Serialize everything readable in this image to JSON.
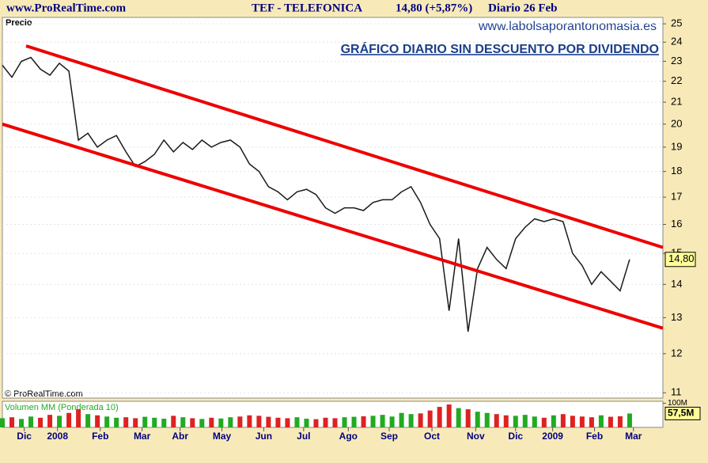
{
  "header": {
    "site": "www.ProRealTime.com",
    "ticker": "TEF - TELEFONICA",
    "change": "14,80 (+5,87%)",
    "period": "Diario  26 Feb"
  },
  "chart_data": [
    {
      "type": "line",
      "title": "Precio",
      "annotations": [
        "www.labolsaporantonomasia.es",
        "GRÁFICO DIARIO SIN DESCUENTO POR DIVIDENDO",
        "© ProRealTime.com"
      ],
      "x": [
        0,
        1,
        2,
        3,
        4,
        5,
        6,
        7,
        8,
        9,
        10,
        11,
        12,
        13,
        14,
        15,
        16,
        17,
        18,
        19,
        20,
        21,
        22,
        23,
        24,
        25,
        26,
        27,
        28,
        29,
        30,
        31,
        32,
        33,
        34,
        35,
        36,
        37,
        38,
        39,
        40,
        41,
        42,
        43,
        44,
        45,
        46,
        47,
        48,
        49,
        50,
        51,
        52,
        53,
        54,
        55,
        56,
        57,
        58,
        59,
        60,
        61,
        62,
        63,
        64,
        65,
        66
      ],
      "values": [
        22.8,
        22.2,
        23.0,
        23.2,
        22.6,
        22.3,
        22.9,
        22.5,
        19.3,
        19.6,
        19.0,
        19.3,
        19.5,
        18.8,
        18.2,
        18.4,
        18.7,
        19.3,
        18.8,
        19.2,
        18.9,
        19.3,
        19.0,
        19.2,
        19.3,
        19.0,
        18.3,
        18.0,
        17.4,
        17.2,
        16.9,
        17.2,
        17.3,
        17.1,
        16.6,
        16.4,
        16.6,
        16.6,
        16.5,
        16.8,
        16.9,
        16.9,
        17.2,
        17.4,
        16.8,
        16.0,
        15.5,
        13.2,
        15.5,
        12.6,
        14.5,
        15.2,
        14.8,
        14.5,
        15.5,
        15.9,
        16.2,
        16.1,
        16.2,
        16.1,
        15.0,
        14.6,
        14.0,
        14.4,
        14.1,
        13.8,
        14.8
      ],
      "color": "#1a1a1a",
      "trendlines": [
        {
          "x": [
            2.5,
            69.5
          ],
          "values": [
            23.8,
            15.2
          ]
        },
        {
          "x": [
            0,
            69.5
          ],
          "values": [
            20.0,
            12.7
          ]
        }
      ],
      "trend_color": "#ee0000",
      "price_marker": {
        "value": 14.8,
        "label": "14,80"
      },
      "log": true,
      "grid": true,
      "xlim": [
        0,
        69.5
      ],
      "ylim": [
        10.87,
        25.36
      ],
      "yticks": [
        11,
        12,
        13,
        14,
        15,
        16,
        17,
        18,
        19,
        20,
        21,
        22,
        23,
        24,
        25
      ],
      "xticks": [
        {
          "value": 2.3,
          "label": "Dic"
        },
        {
          "value": 5.8,
          "label": "2008"
        },
        {
          "value": 10.3,
          "label": "Feb"
        },
        {
          "value": 14.7,
          "label": "Mar"
        },
        {
          "value": 18.7,
          "label": "Abr"
        },
        {
          "value": 23.1,
          "label": "May"
        },
        {
          "value": 27.5,
          "label": "Jun"
        },
        {
          "value": 31.7,
          "label": "Jul"
        },
        {
          "value": 36.4,
          "label": "Ago"
        },
        {
          "value": 40.7,
          "label": "Sep"
        },
        {
          "value": 45.2,
          "label": "Oct"
        },
        {
          "value": 49.8,
          "label": "Nov"
        },
        {
          "value": 54.0,
          "label": "Dic"
        },
        {
          "value": 57.9,
          "label": "2009"
        },
        {
          "value": 62.3,
          "label": "Feb"
        },
        {
          "value": 66.4,
          "label": "Mar"
        }
      ]
    },
    {
      "type": "bar",
      "title": "Volumen MM (Ponderada 10)",
      "x": [
        0,
        1,
        2,
        3,
        4,
        5,
        6,
        7,
        8,
        9,
        10,
        11,
        12,
        13,
        14,
        15,
        16,
        17,
        18,
        19,
        20,
        21,
        22,
        23,
        24,
        25,
        26,
        27,
        28,
        29,
        30,
        31,
        32,
        33,
        34,
        35,
        36,
        37,
        38,
        39,
        40,
        41,
        42,
        43,
        44,
        45,
        46,
        47,
        48,
        49,
        50,
        51,
        52,
        53,
        54,
        55,
        56,
        57,
        58,
        59,
        60,
        61,
        62,
        63,
        64,
        65,
        66
      ],
      "values": [
        38,
        42,
        35,
        45,
        40,
        52,
        48,
        60,
        75,
        55,
        50,
        45,
        40,
        42,
        38,
        44,
        40,
        36,
        48,
        42,
        38,
        35,
        40,
        37,
        42,
        45,
        50,
        48,
        44,
        40,
        38,
        42,
        36,
        34,
        40,
        38,
        42,
        44,
        46,
        48,
        52,
        45,
        60,
        55,
        58,
        70,
        85,
        95,
        80,
        75,
        65,
        60,
        55,
        50,
        48,
        52,
        45,
        40,
        50,
        55,
        48,
        45,
        42,
        50,
        44,
        46,
        57.5
      ],
      "up_color": "#22aa22",
      "down_color": "#dd2222",
      "current": {
        "value": 57.5,
        "label": "57,5M"
      },
      "xlim": [
        0,
        69.5
      ],
      "ylim": [
        0,
        105
      ],
      "yticks": [
        {
          "value": 100,
          "label": "100M"
        }
      ]
    }
  ]
}
